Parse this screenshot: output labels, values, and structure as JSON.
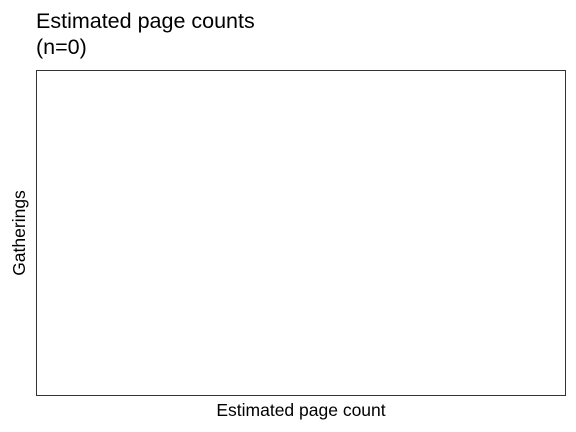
{
  "chart_data": {
    "type": "bar",
    "title": [
      "Estimated page counts",
      "(n=0)"
    ],
    "xlabel": "Estimated page count",
    "ylabel": "Gatherings",
    "categories": [],
    "values": [],
    "grid": false,
    "legend": "none"
  }
}
